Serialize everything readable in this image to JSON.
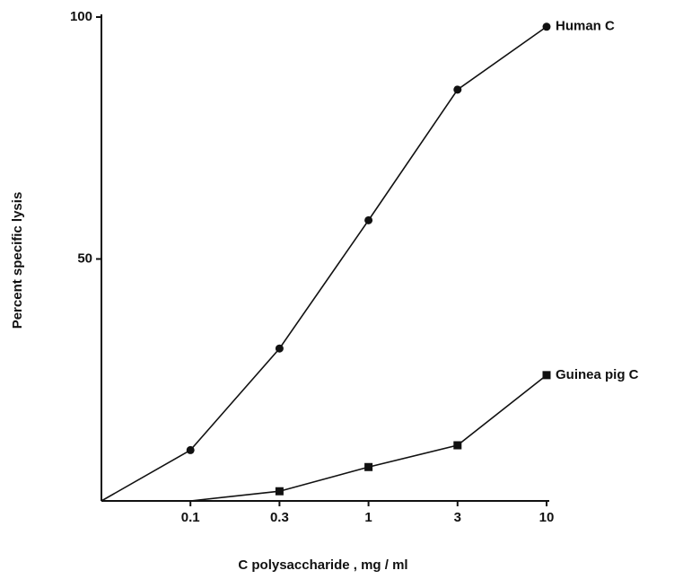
{
  "chart_data": {
    "type": "line",
    "x_label": "C polysaccharide , mg / ml",
    "y_label": "Percent specific lysis",
    "categories": [
      null,
      "0.1",
      "0.3",
      "1",
      "3",
      "10"
    ],
    "series": [
      {
        "name": "Human C",
        "color": "#111111",
        "marker": "circle",
        "values": [
          0,
          10.5,
          31.5,
          58,
          85,
          98
        ]
      },
      {
        "name": "Guinea pig C",
        "color": "#111111",
        "marker": "square",
        "values": [
          null,
          0,
          2,
          7,
          11.5,
          26
        ]
      }
    ],
    "ylim": [
      0,
      100
    ],
    "yticks": [
      50,
      100
    ]
  }
}
